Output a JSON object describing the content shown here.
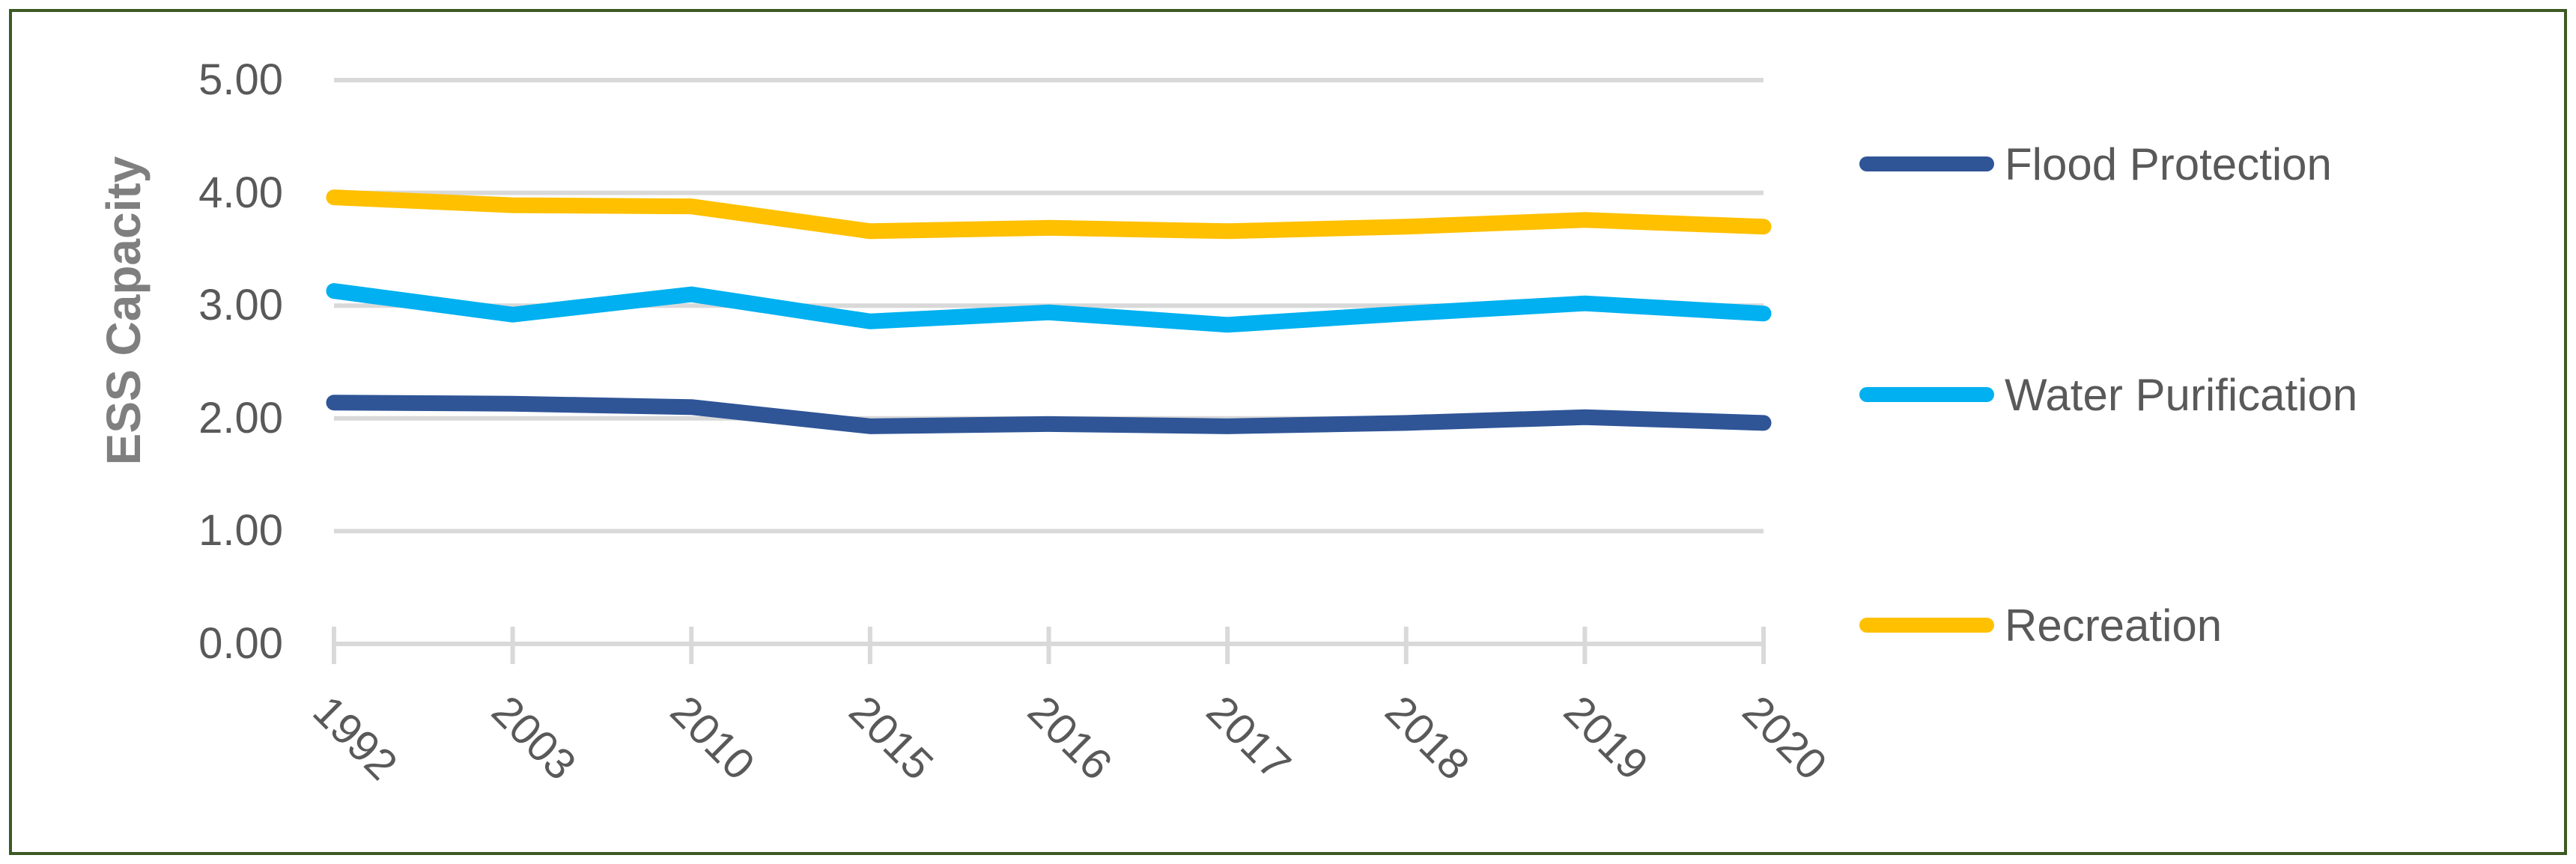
{
  "chart_data": {
    "type": "line",
    "title": "",
    "categories": [
      "1992",
      "2003",
      "2010",
      "2015",
      "2016",
      "2017",
      "2018",
      "2019",
      "2020"
    ],
    "series": [
      {
        "name": "Flood Protection",
        "color": "#2F5597",
        "values": [
          2.14,
          2.13,
          2.1,
          1.93,
          1.95,
          1.93,
          1.96,
          2.01,
          1.96
        ]
      },
      {
        "name": "Water Purification",
        "color": "#00B0F0",
        "values": [
          3.13,
          2.92,
          3.1,
          2.86,
          2.94,
          2.83,
          2.93,
          3.02,
          2.93
        ]
      },
      {
        "name": "Recreation",
        "color": "#FFC000",
        "values": [
          3.96,
          3.89,
          3.88,
          3.66,
          3.69,
          3.66,
          3.7,
          3.76,
          3.7
        ]
      }
    ],
    "xlabel": "",
    "ylabel": "ESS Capacity",
    "ylim": [
      0,
      5
    ],
    "y_ticks": [
      0,
      1,
      2,
      3,
      4,
      5
    ],
    "y_tick_labels": [
      "0.00",
      "1.00",
      "2.00",
      "3.00",
      "4.00",
      "5.00"
    ],
    "grid": "horizontal",
    "legend_position": "right",
    "x_tick_rotation_deg": 45
  },
  "styles": {
    "background": "#FFFFFF",
    "frame_border_color": "#3C5A22",
    "grid_color": "#D9D9D9",
    "axis_line_color": "#D9D9D9",
    "tick_label_color": "#595959",
    "axis_title_color": "#7F7F7F",
    "legend_text_color": "#595959"
  }
}
